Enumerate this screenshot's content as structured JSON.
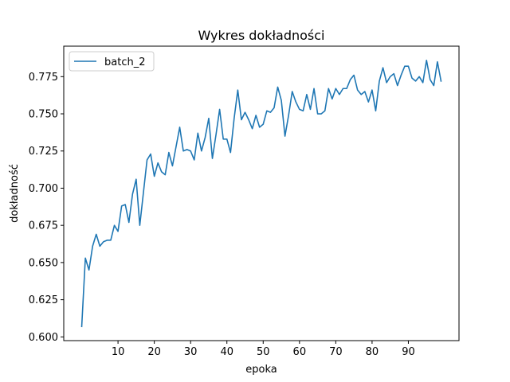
{
  "chart_data": {
    "type": "line",
    "title": "Wykres dokładności",
    "xlabel": "epoka",
    "ylabel": "dokładność",
    "xlim": [
      -4.95,
      103.95
    ],
    "ylim": [
      0.5975,
      0.7955
    ],
    "xticks": [
      10,
      20,
      30,
      40,
      50,
      60,
      70,
      80,
      90
    ],
    "xtick_labels": [
      "10",
      "20",
      "30",
      "40",
      "50",
      "60",
      "70",
      "80",
      "90"
    ],
    "yticks": [
      0.6,
      0.625,
      0.65,
      0.675,
      0.7,
      0.725,
      0.75,
      0.775
    ],
    "ytick_labels": [
      "0.600",
      "0.625",
      "0.650",
      "0.675",
      "0.700",
      "0.725",
      "0.750",
      "0.775"
    ],
    "grid": false,
    "legend": {
      "position": "top-left",
      "entries": [
        "batch_2"
      ]
    },
    "series": [
      {
        "name": "batch_2",
        "color": "#1f77b4",
        "x": [
          0,
          1,
          2,
          3,
          4,
          5,
          6,
          7,
          8,
          9,
          10,
          11,
          12,
          13,
          14,
          15,
          16,
          17,
          18,
          19,
          20,
          21,
          22,
          23,
          24,
          25,
          26,
          27,
          28,
          29,
          30,
          31,
          32,
          33,
          34,
          35,
          36,
          37,
          38,
          39,
          40,
          41,
          42,
          43,
          44,
          45,
          46,
          47,
          48,
          49,
          50,
          51,
          52,
          53,
          54,
          55,
          56,
          57,
          58,
          59,
          60,
          61,
          62,
          63,
          64,
          65,
          66,
          67,
          68,
          69,
          70,
          71,
          72,
          73,
          74,
          75,
          76,
          77,
          78,
          79,
          80,
          81,
          82,
          83,
          84,
          85,
          86,
          87,
          88,
          89,
          90,
          91,
          92,
          93,
          94,
          95,
          96,
          97,
          98,
          99
        ],
        "values": [
          0.607,
          0.653,
          0.645,
          0.661,
          0.669,
          0.661,
          0.664,
          0.665,
          0.665,
          0.675,
          0.671,
          0.688,
          0.689,
          0.677,
          0.696,
          0.706,
          0.675,
          0.697,
          0.719,
          0.723,
          0.708,
          0.717,
          0.711,
          0.709,
          0.724,
          0.715,
          0.728,
          0.741,
          0.725,
          0.726,
          0.725,
          0.719,
          0.737,
          0.725,
          0.734,
          0.747,
          0.72,
          0.736,
          0.753,
          0.733,
          0.733,
          0.724,
          0.747,
          0.766,
          0.746,
          0.751,
          0.746,
          0.74,
          0.749,
          0.741,
          0.743,
          0.752,
          0.751,
          0.754,
          0.768,
          0.759,
          0.735,
          0.749,
          0.765,
          0.758,
          0.753,
          0.752,
          0.763,
          0.753,
          0.767,
          0.75,
          0.75,
          0.752,
          0.767,
          0.76,
          0.767,
          0.763,
          0.767,
          0.767,
          0.773,
          0.776,
          0.766,
          0.763,
          0.765,
          0.758,
          0.766,
          0.752,
          0.772,
          0.781,
          0.771,
          0.775,
          0.777,
          0.769,
          0.776,
          0.782,
          0.782,
          0.774,
          0.772,
          0.775,
          0.771,
          0.786,
          0.773,
          0.769,
          0.785,
          0.772
        ]
      }
    ]
  }
}
